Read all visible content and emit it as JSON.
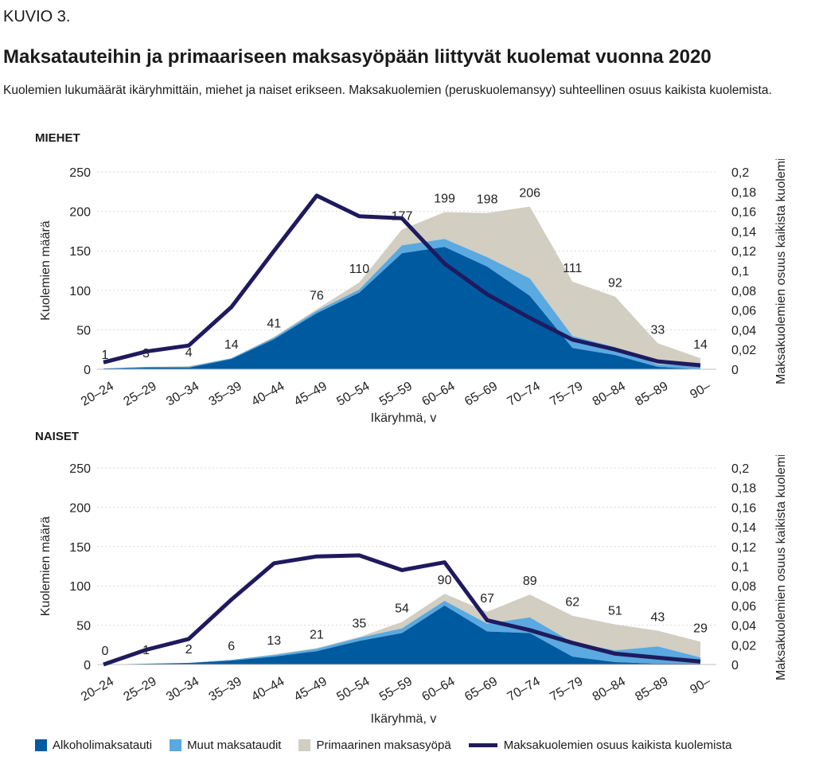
{
  "figure_label": "KUVIO 3.",
  "title": "Maksatauteihin ja primaariseen maksasyöpään liittyvät kuolemat vuonna 2020",
  "subtitle": "Kuolemien lukumäärät ikäryhmittäin, miehet ja naiset erikseen. Maksakuolemien (peruskuolemansyy) suhteellinen osuus kaikista kuolemista.",
  "legend": {
    "alcohol": "Alkoholimaksatauti",
    "other": "Muut maksataudit",
    "cancer": "Primaarinen maksasyöpä",
    "share": "Maksakuolemien osuus kaikista kuolemista"
  },
  "colors": {
    "alcohol": "#005aa0",
    "other": "#5aa9e0",
    "cancer": "#d2cec2",
    "share": "#1f1a5e"
  },
  "chart_data": [
    {
      "type": "area",
      "panel": "MIEHET",
      "xlabel": "Ikäryhmä, v",
      "ylabel": "Kuolemien määrä",
      "y2label": "Maksakuolemien osuus kaikista kuolemista",
      "ylim": [
        0,
        250
      ],
      "yticks": [
        "0",
        "50",
        "100",
        "150",
        "200",
        "250"
      ],
      "y2lim": [
        0,
        0.2
      ],
      "y2ticks": [
        "0",
        "0,02",
        "0,04",
        "0,06",
        "0,08",
        "0,1",
        "0,12",
        "0,14",
        "0,16",
        "0,18",
        "0,2"
      ],
      "categories": [
        "20–24",
        "25–29",
        "30–34",
        "35–39",
        "40–44",
        "45–49",
        "50–54",
        "55–59",
        "60–64",
        "65–69",
        "70–74",
        "75–79",
        "80–84",
        "85–89",
        "90–"
      ],
      "series": [
        {
          "name": "Alkoholimaksatauti",
          "values": [
            1,
            2,
            2,
            13,
            38,
            71,
            97,
            147,
            155,
            130,
            93,
            27,
            18,
            3,
            0
          ]
        },
        {
          "name": "Muut maksataudit",
          "values": [
            0,
            1,
            1,
            1,
            2,
            3,
            4,
            10,
            10,
            12,
            22,
            15,
            10,
            3,
            4
          ]
        },
        {
          "name": "Primaarinen maksasyöpä",
          "values": [
            0,
            0,
            1,
            0,
            1,
            2,
            9,
            20,
            34,
            56,
            91,
            69,
            64,
            27,
            10
          ]
        },
        {
          "name": "Maksakuolemien osuus kaikista kuolemista",
          "axis": "right",
          "values": [
            0.007,
            0.018,
            0.024,
            0.063,
            0.12,
            0.176,
            0.155,
            0.153,
            0.107,
            0.076,
            0.052,
            0.03,
            0.02,
            0.008,
            0.004
          ]
        }
      ],
      "totals": [
        "1",
        "3",
        "4",
        "14",
        "41",
        "76",
        "110",
        "177",
        "199",
        "198",
        "206",
        "111",
        "92",
        "33",
        "14"
      ]
    },
    {
      "type": "area",
      "panel": "NAISET",
      "xlabel": "Ikäryhmä, v",
      "ylabel": "Kuolemien määrä",
      "y2label": "Maksakuolemien osuus kaikista kuolemista",
      "ylim": [
        0,
        250
      ],
      "yticks": [
        "0",
        "50",
        "100",
        "150",
        "200",
        "250"
      ],
      "y2lim": [
        0,
        0.2
      ],
      "y2ticks": [
        "0",
        "0,02",
        "0,04",
        "0,06",
        "0,08",
        "0,1",
        "0,12",
        "0,14",
        "0,16",
        "0,18",
        "0,2"
      ],
      "categories": [
        "20–24",
        "25–29",
        "30–34",
        "35–39",
        "40–44",
        "45–49",
        "50–54",
        "55–59",
        "60–64",
        "65–69",
        "70–74",
        "75–79",
        "80–84",
        "85–89",
        "90–"
      ],
      "series": [
        {
          "name": "Alkoholimaksatauti",
          "values": [
            0,
            1,
            2,
            5,
            10,
            17,
            30,
            40,
            75,
            42,
            40,
            10,
            3,
            1,
            1
          ]
        },
        {
          "name": "Muut maksataudit",
          "values": [
            0,
            0,
            0,
            1,
            2,
            3,
            4,
            6,
            6,
            10,
            20,
            18,
            15,
            22,
            8
          ]
        },
        {
          "name": "Primaarinen maksasyöpä",
          "values": [
            0,
            0,
            0,
            0,
            1,
            1,
            1,
            8,
            9,
            15,
            29,
            34,
            33,
            20,
            20
          ]
        },
        {
          "name": "Maksakuolemien osuus kaikista kuolemista",
          "axis": "right",
          "values": [
            0.0,
            0.015,
            0.026,
            0.066,
            0.103,
            0.11,
            0.111,
            0.096,
            0.104,
            0.045,
            0.035,
            0.022,
            0.011,
            0.007,
            0.003
          ]
        }
      ],
      "totals": [
        "0",
        "1",
        "2",
        "6",
        "13",
        "21",
        "35",
        "54",
        "90",
        "67",
        "89",
        "62",
        "51",
        "43",
        "29"
      ]
    }
  ]
}
